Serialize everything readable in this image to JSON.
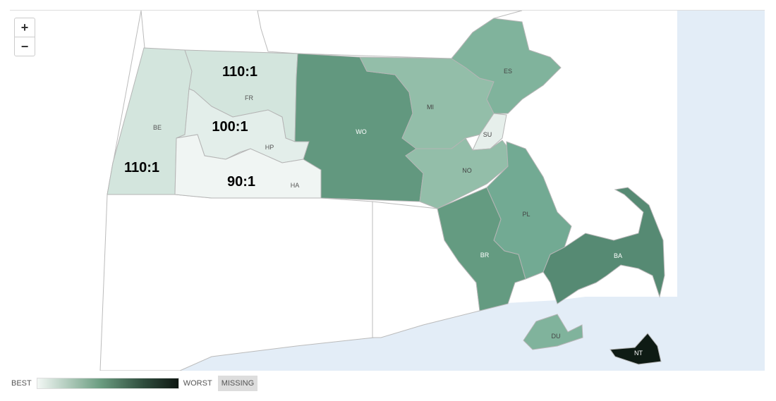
{
  "zoom_controls": {
    "in": "+",
    "out": "−"
  },
  "legend": {
    "best": "BEST",
    "worst": "WORST",
    "missing": "MISSING",
    "gradient": [
      "#f2f7f4",
      "#6a9c80",
      "#2f4d3d",
      "#0e1712"
    ]
  },
  "ocean_color": "#e3edf7",
  "counties": [
    {
      "code": "BE",
      "ratio": "110:1",
      "fill": "#d3e5dd",
      "text": "#555"
    },
    {
      "code": "FR",
      "ratio": "110:1",
      "fill": "#d3e5dd",
      "text": "#555"
    },
    {
      "code": "HP",
      "ratio": "100:1",
      "fill": "#e3eeea",
      "text": "#555"
    },
    {
      "code": "HA",
      "ratio": "90:1",
      "fill": "#f0f5f3",
      "text": "#555"
    },
    {
      "code": "WO",
      "ratio": null,
      "fill": "#62987f",
      "text": "#fff"
    },
    {
      "code": "MI",
      "ratio": null,
      "fill": "#93bea9",
      "text": "#444"
    },
    {
      "code": "ES",
      "ratio": null,
      "fill": "#80b39c",
      "text": "#444"
    },
    {
      "code": "SU",
      "ratio": null,
      "fill": "#e6efeb",
      "text": "#444"
    },
    {
      "code": "NO",
      "ratio": null,
      "fill": "#93bea9",
      "text": "#444"
    },
    {
      "code": "PL",
      "ratio": null,
      "fill": "#72aa93",
      "text": "#444"
    },
    {
      "code": "BR",
      "ratio": null,
      "fill": "#649b81",
      "text": "#fff"
    },
    {
      "code": "BA",
      "ratio": null,
      "fill": "#568a73",
      "text": "#fff"
    },
    {
      "code": "DU",
      "ratio": null,
      "fill": "#80b39c",
      "text": "#444"
    },
    {
      "code": "NT",
      "ratio": null,
      "fill": "#0e1b14",
      "text": "#fff"
    }
  ]
}
